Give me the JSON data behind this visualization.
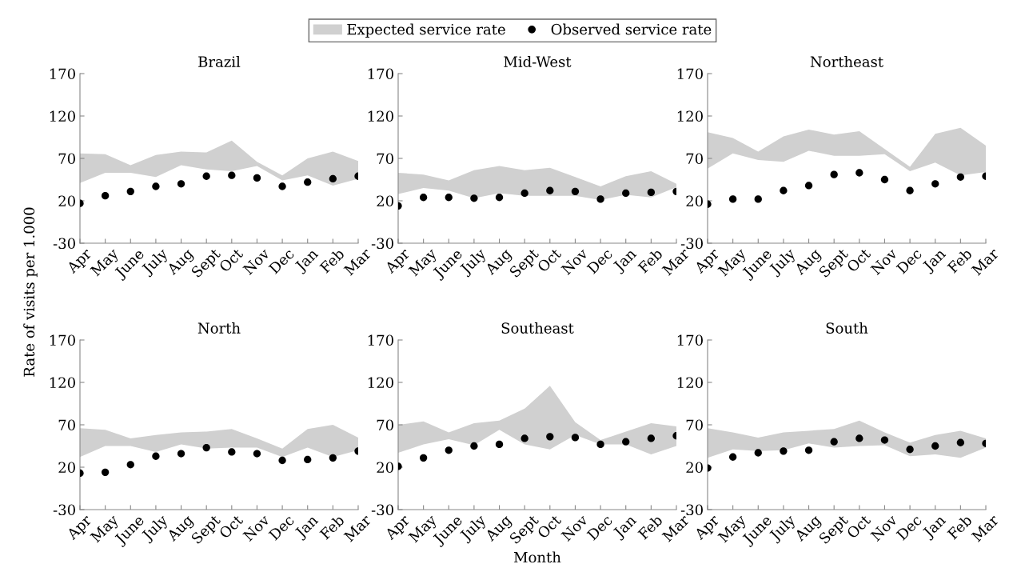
{
  "chart_data": [
    {
      "type": "line",
      "title": "Brazil",
      "ylabel": "Rate of visits per 1.000",
      "legend": "top",
      "grid": false,
      "categories": [
        "Apr",
        "May",
        "June",
        "July",
        "Aug",
        "Sept",
        "Oct",
        "Nov",
        "Dec",
        "Jan",
        "Feb",
        "Mar"
      ],
      "ylim": [
        -30,
        170
      ],
      "yticks": [
        -30,
        20,
        70,
        120,
        170
      ],
      "series": [
        {
          "name": "Expected service rate",
          "color": "#d0d0d0",
          "values": [
            null,
            null,
            null,
            null,
            null,
            null,
            null,
            null,
            null,
            null,
            null,
            null
          ],
          "upper": [
            76,
            75,
            62,
            74,
            78,
            77,
            91,
            66,
            50,
            70,
            78,
            67
          ],
          "lower": [
            41,
            53,
            53,
            48,
            62,
            57,
            55,
            61,
            44,
            50,
            38,
            46
          ]
        },
        {
          "name": "Observed service rate",
          "type": "scatter",
          "marker": "circle",
          "color": "#000000",
          "values": [
            17,
            26,
            31,
            37,
            40,
            49,
            50,
            47,
            37,
            42,
            46,
            49
          ]
        }
      ]
    },
    {
      "type": "line",
      "title": "Mid-West",
      "grid": false,
      "categories": [
        "Apr",
        "May",
        "June",
        "July",
        "Aug",
        "Sept",
        "Oct",
        "Nov",
        "Dec",
        "Jan",
        "Feb",
        "Mar"
      ],
      "ylim": [
        -30,
        170
      ],
      "yticks": [
        -30,
        20,
        70,
        120,
        170
      ],
      "series": [
        {
          "color": "#d0d0d0",
          "values": [
            null,
            null,
            null,
            null,
            null,
            null,
            null,
            null,
            null,
            null,
            null,
            null
          ],
          "upper": [
            53,
            51,
            44,
            56,
            61,
            56,
            59,
            48,
            37,
            49,
            55,
            40
          ],
          "lower": [
            28,
            35,
            32,
            23,
            29,
            26,
            26,
            26,
            21,
            27,
            24,
            36
          ]
        },
        {
          "type": "scatter",
          "marker": "circle",
          "color": "#000000",
          "values": [
            14,
            24,
            24,
            23,
            24,
            29,
            32,
            31,
            22,
            29,
            30,
            31
          ]
        }
      ]
    },
    {
      "type": "line",
      "title": "Northeast",
      "grid": false,
      "categories": [
        "Apr",
        "May",
        "June",
        "July",
        "Aug",
        "Sept",
        "Oct",
        "Nov",
        "Dec",
        "Jan",
        "Feb",
        "Mar"
      ],
      "ylim": [
        -30,
        170
      ],
      "yticks": [
        -30,
        20,
        70,
        120,
        170
      ],
      "series": [
        {
          "color": "#d0d0d0",
          "values": [
            null,
            null,
            null,
            null,
            null,
            null,
            null,
            null,
            null,
            null,
            null,
            null
          ],
          "upper": [
            101,
            94,
            78,
            96,
            104,
            98,
            102,
            81,
            60,
            99,
            106,
            85
          ],
          "lower": [
            58,
            76,
            68,
            66,
            79,
            73,
            73,
            75,
            55,
            65,
            50,
            54
          ]
        },
        {
          "type": "scatter",
          "marker": "circle",
          "color": "#000000",
          "values": [
            16,
            22,
            22,
            32,
            38,
            51,
            53,
            45,
            32,
            40,
            48,
            49
          ]
        }
      ]
    },
    {
      "type": "line",
      "title": "North",
      "grid": false,
      "categories": [
        "Apr",
        "May",
        "June",
        "July",
        "Aug",
        "Sept",
        "Oct",
        "Nov",
        "Dec",
        "Jan",
        "Feb",
        "Mar"
      ],
      "ylim": [
        -30,
        170
      ],
      "yticks": [
        -30,
        20,
        70,
        120,
        170
      ],
      "series": [
        {
          "color": "#d0d0d0",
          "values": [
            null,
            null,
            null,
            null,
            null,
            null,
            null,
            null,
            null,
            null,
            null,
            null
          ],
          "upper": [
            66,
            64,
            54,
            58,
            61,
            62,
            65,
            54,
            42,
            65,
            70,
            55
          ],
          "lower": [
            32,
            45,
            45,
            38,
            47,
            42,
            43,
            43,
            32,
            43,
            32,
            40
          ]
        },
        {
          "type": "scatter",
          "marker": "circle",
          "color": "#000000",
          "values": [
            13,
            14,
            23,
            33,
            36,
            43,
            38,
            36,
            28,
            29,
            31,
            39
          ]
        }
      ]
    },
    {
      "type": "line",
      "title": "Southeast",
      "xlabel": "Month",
      "grid": false,
      "categories": [
        "Apr",
        "May",
        "June",
        "July",
        "Aug",
        "Sept",
        "Oct",
        "Nov",
        "Dec",
        "Jan",
        "Feb",
        "Mar"
      ],
      "ylim": [
        -30,
        170
      ],
      "yticks": [
        -30,
        20,
        70,
        120,
        170
      ],
      "series": [
        {
          "color": "#d0d0d0",
          "values": [
            null,
            null,
            null,
            null,
            null,
            null,
            null,
            null,
            null,
            null,
            null,
            null
          ],
          "upper": [
            70,
            74,
            61,
            72,
            75,
            89,
            116,
            73,
            52,
            62,
            72,
            68
          ],
          "lower": [
            37,
            47,
            53,
            46,
            64,
            47,
            41,
            58,
            47,
            47,
            35,
            45
          ]
        },
        {
          "type": "scatter",
          "marker": "circle",
          "color": "#000000",
          "values": [
            21,
            31,
            40,
            45,
            47,
            54,
            56,
            55,
            47,
            50,
            54,
            57
          ]
        }
      ]
    },
    {
      "type": "line",
      "title": "South",
      "grid": false,
      "categories": [
        "Apr",
        "May",
        "June",
        "July",
        "Aug",
        "Sept",
        "Oct",
        "Nov",
        "Dec",
        "Jan",
        "Feb",
        "Mar"
      ],
      "ylim": [
        -30,
        170
      ],
      "yticks": [
        -30,
        20,
        70,
        120,
        170
      ],
      "series": [
        {
          "color": "#d0d0d0",
          "values": [
            null,
            null,
            null,
            null,
            null,
            null,
            null,
            null,
            null,
            null,
            null,
            null
          ],
          "upper": [
            66,
            61,
            55,
            61,
            63,
            65,
            75,
            61,
            49,
            58,
            63,
            54
          ],
          "lower": [
            31,
            41,
            39,
            40,
            48,
            43,
            45,
            46,
            33,
            35,
            31,
            43
          ]
        },
        {
          "type": "scatter",
          "marker": "circle",
          "color": "#000000",
          "values": [
            19,
            32,
            37,
            39,
            40,
            50,
            54,
            52,
            41,
            45,
            49,
            48
          ]
        }
      ]
    }
  ]
}
